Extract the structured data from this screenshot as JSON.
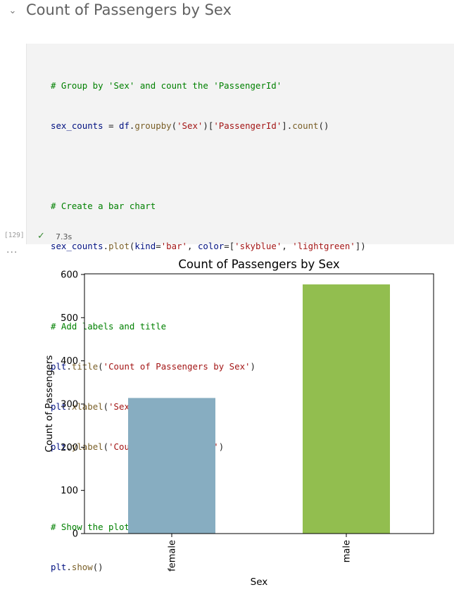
{
  "markdown_header": {
    "title": "Count of Passengers by Sex",
    "collapse_icon": "chevron-down-icon"
  },
  "cell": {
    "execution_count": "[129]",
    "status": "success",
    "status_icon": "checkmark-icon",
    "duration": "7.3s",
    "output_menu_icon": "ellipsis-icon",
    "code": {
      "l1": "# Group by 'Sex' and count the 'PassengerId'",
      "l2a": "sex_counts",
      "l2b": " = ",
      "l2c": "df",
      "l2d": ".",
      "l2e": "groupby",
      "l2f": "(",
      "l2g": "'Sex'",
      "l2h": ")[",
      "l2i": "'PassengerId'",
      "l2j": "].",
      "l2k": "count",
      "l2l": "()",
      "l4": "# Create a bar chart",
      "l5a": "sex_counts",
      "l5b": ".",
      "l5c": "plot",
      "l5d": "(",
      "l5e": "kind",
      "l5f": "=",
      "l5g": "'bar'",
      "l5h": ", ",
      "l5i": "color",
      "l5j": "=[",
      "l5k": "'skyblue'",
      "l5l": ", ",
      "l5m": "'lightgreen'",
      "l5n": "])",
      "l7": "# Add labels and title",
      "l8a": "plt",
      "l8b": ".",
      "l8c": "title",
      "l8d": "(",
      "l8e": "'Count of Passengers by Sex'",
      "l8f": ")",
      "l9a": "plt",
      "l9b": ".",
      "l9c": "xlabel",
      "l9d": "(",
      "l9e": "'Sex'",
      "l9f": ")",
      "l10a": "plt",
      "l10b": ".",
      "l10c": "ylabel",
      "l10d": "(",
      "l10e": "'Count of Passengers'",
      "l10f": ")",
      "l12": "# Show the plot",
      "l13a": "plt",
      "l13b": ".",
      "l13c": "show",
      "l13d": "()"
    }
  },
  "chart_data": {
    "type": "bar",
    "title": "Count of Passengers by Sex",
    "xlabel": "Sex",
    "ylabel": "Count of Passengers",
    "categories": [
      "female",
      "male"
    ],
    "values": [
      314,
      577
    ],
    "colors": [
      "#87adc1",
      "#92be4f"
    ],
    "ylim": [
      0,
      600
    ],
    "yticks": [
      0,
      100,
      200,
      300,
      400,
      500,
      600
    ],
    "ytick_labels": [
      "0",
      "100",
      "200",
      "300",
      "400",
      "500",
      "600"
    ],
    "grid": false,
    "legend": "none"
  }
}
